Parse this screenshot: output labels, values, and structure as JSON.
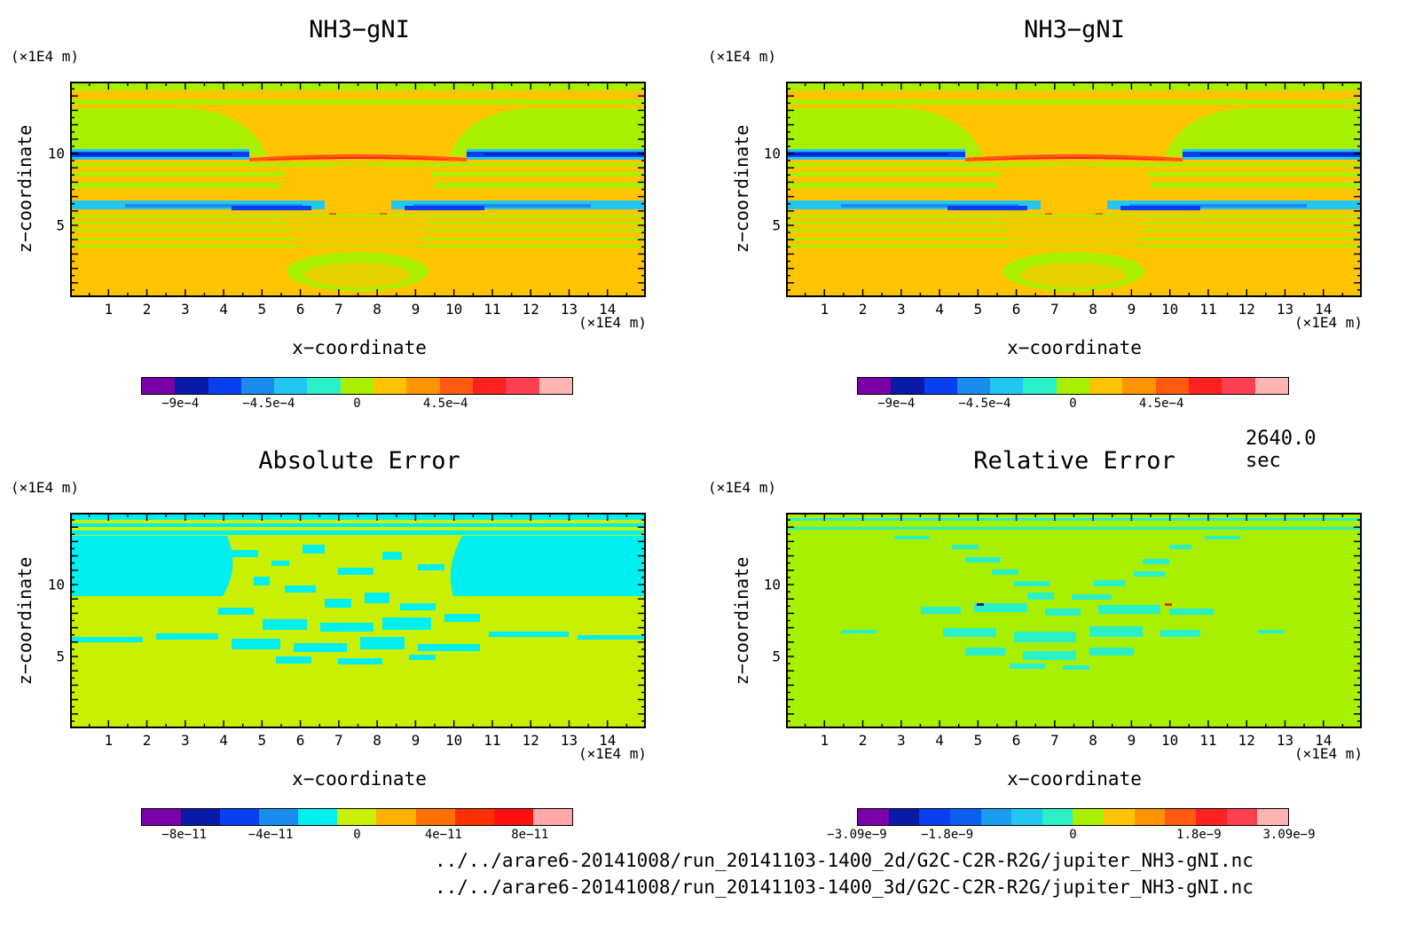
{
  "time_label": "2640.0 sec",
  "file_paths": [
    "../../arare6-20141008/run_20141103-1400_2d/G2C-C2R-R2G/jupiter_NH3-gNI.nc",
    "../../arare6-20141008/run_20141103-1400_3d/G2C-C2R-R2G/jupiter_NH3-gNI.nc"
  ],
  "units": {
    "z": "(×1E4 m)",
    "x": "(×1E4 m)"
  },
  "axes": {
    "xlabel": "x−coordinate",
    "ylabel": "z−coordinate"
  },
  "colors": {
    "palette_main": [
      "#7a00a8",
      "#0a1aa8",
      "#0a3ff0",
      "#1a8cf0",
      "#22c6f0",
      "#2af0c8",
      "#a8f000",
      "#ffc400",
      "#ff9400",
      "#ff5a10",
      "#ff2020",
      "#ff4050",
      "#ffb4b4"
    ],
    "palette_abs": [
      "#7a00a8",
      "#0a1aa8",
      "#0a3ff0",
      "#1a8cf0",
      "#00f0f0",
      "#c8f000",
      "#ffb000",
      "#ff7000",
      "#ff3000",
      "#ff1010",
      "#ffa8a8"
    ],
    "palette_rel": [
      "#7a00a8",
      "#0a1aa8",
      "#0a3ff0",
      "#0a5ff0",
      "#1a9cf0",
      "#22c6f0",
      "#2af0c8",
      "#a8f000",
      "#ffc400",
      "#ff9400",
      "#ff5a10",
      "#ff2020",
      "#ff4050",
      "#ffb4b4"
    ]
  },
  "chart_data": [
    {
      "type": "heatmap",
      "title": "NH3−gNI",
      "xlabel": "x−coordinate",
      "ylabel": "z−coordinate",
      "x_ticks": [
        1,
        2,
        3,
        4,
        5,
        6,
        7,
        8,
        9,
        10,
        11,
        12,
        13,
        14
      ],
      "y_ticks": [
        5,
        10
      ],
      "xlim": [
        0,
        15
      ],
      "ylim": [
        0,
        15
      ],
      "colorbar_ticks": [
        "−9e−4",
        "−4.5e−4",
        "0",
        "4.5e−4"
      ],
      "colorbar_tick_values": [
        -0.0009,
        -0.00045,
        0,
        0.00045
      ],
      "colorbar_range": [
        -0.0011,
        0.0011
      ]
    },
    {
      "type": "heatmap",
      "title": "NH3−gNI",
      "xlabel": "x−coordinate",
      "ylabel": "z−coordinate",
      "x_ticks": [
        1,
        2,
        3,
        4,
        5,
        6,
        7,
        8,
        9,
        10,
        11,
        12,
        13,
        14
      ],
      "y_ticks": [
        5,
        10
      ],
      "xlim": [
        0,
        15
      ],
      "ylim": [
        0,
        15
      ],
      "colorbar_ticks": [
        "−9e−4",
        "−4.5e−4",
        "0",
        "4.5e−4"
      ],
      "colorbar_tick_values": [
        -0.0009,
        -0.00045,
        0,
        0.00045
      ],
      "colorbar_range": [
        -0.0011,
        0.0011
      ]
    },
    {
      "type": "heatmap",
      "title": "Absolute Error",
      "xlabel": "x−coordinate",
      "ylabel": "z−coordinate",
      "x_ticks": [
        1,
        2,
        3,
        4,
        5,
        6,
        7,
        8,
        9,
        10,
        11,
        12,
        13,
        14
      ],
      "y_ticks": [
        5,
        10
      ],
      "xlim": [
        0,
        15
      ],
      "ylim": [
        0,
        15
      ],
      "colorbar_ticks": [
        "−8e−11",
        "−4e−11",
        "0",
        "4e−11",
        "8e−11"
      ],
      "colorbar_tick_values": [
        -8e-11,
        -4e-11,
        0,
        4e-11,
        8e-11
      ],
      "colorbar_range": [
        -1e-10,
        1e-10
      ]
    },
    {
      "type": "heatmap",
      "title": "Relative Error",
      "xlabel": "x−coordinate",
      "ylabel": "z−coordinate",
      "x_ticks": [
        1,
        2,
        3,
        4,
        5,
        6,
        7,
        8,
        9,
        10,
        11,
        12,
        13,
        14
      ],
      "y_ticks": [
        5,
        10
      ],
      "xlim": [
        0,
        15
      ],
      "ylim": [
        0,
        15
      ],
      "colorbar_ticks": [
        "−3.09e−9",
        "−1.8e−9",
        "0",
        "1.8e−9",
        "3.09e−9"
      ],
      "colorbar_tick_values": [
        -3.09e-09,
        -1.8e-09,
        0,
        1.8e-09,
        3.09e-09
      ],
      "colorbar_range": [
        -3.09e-09,
        3.09e-09
      ]
    }
  ]
}
